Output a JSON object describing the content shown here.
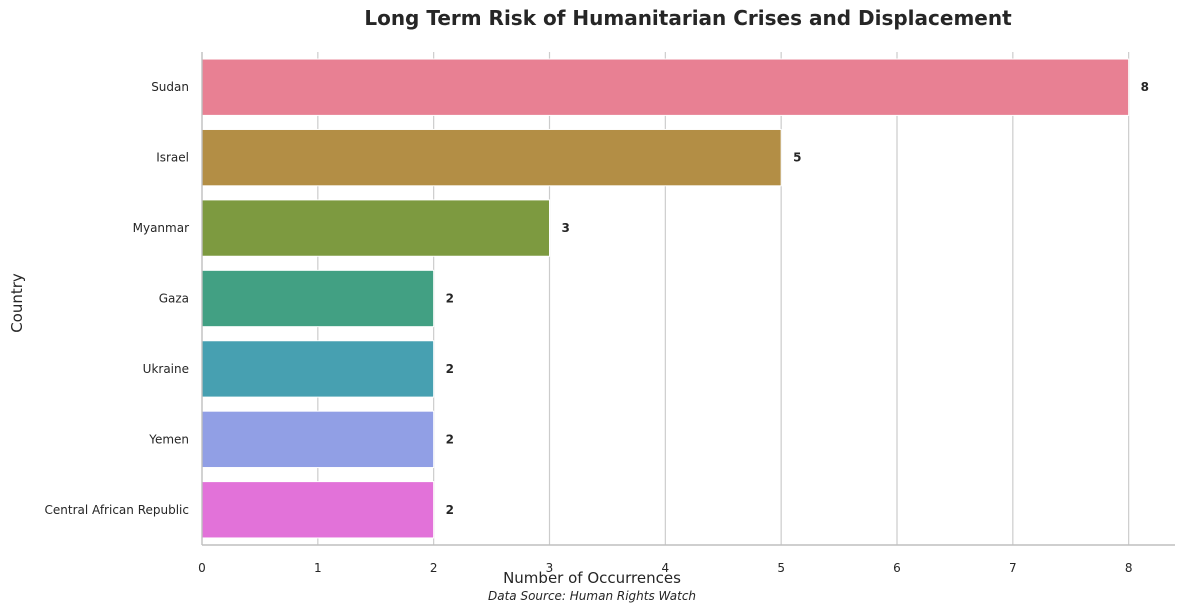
{
  "chart_data": {
    "type": "bar",
    "orientation": "horizontal",
    "title": "Long Term Risk of Humanitarian Crises and Displacement",
    "xlabel": "Number of Occurrences",
    "ylabel": "Country",
    "source": "Data Source: Human Rights Watch",
    "categories": [
      "Sudan",
      "Israel",
      "Myanmar",
      "Gaza",
      "Ukraine",
      "Yemen",
      "Central African Republic"
    ],
    "values": [
      8,
      5,
      3,
      2,
      2,
      2,
      2
    ],
    "colors": [
      "#e88093",
      "#b38e45",
      "#7d9a40",
      "#42a083",
      "#47a0b1",
      "#919fe5",
      "#e272d9"
    ],
    "xlim": [
      0,
      8.4
    ],
    "xticks": [
      0,
      1,
      2,
      3,
      4,
      5,
      6,
      7,
      8
    ],
    "grid": "vertical",
    "legend": "none"
  }
}
